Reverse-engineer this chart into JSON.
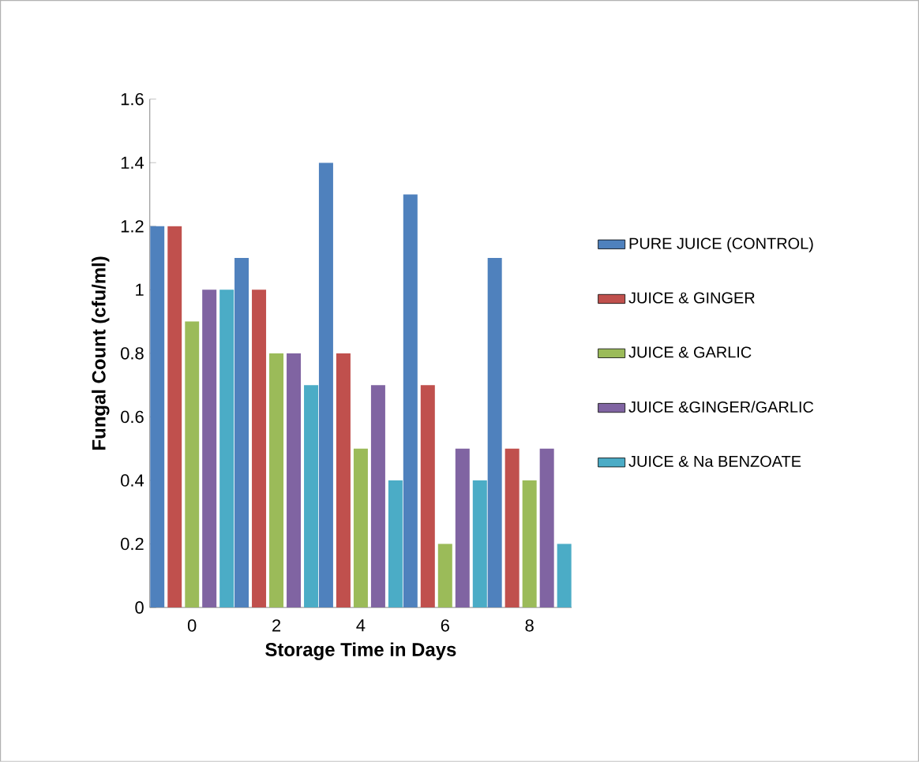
{
  "chart_data": {
    "type": "bar",
    "xlabel": "Storage Time in Days",
    "ylabel": "Fungal Count  (cfu/ml)",
    "categories": [
      "0",
      "2",
      "4",
      "6",
      "8"
    ],
    "series": [
      {
        "name": "PURE JUICE (CONTROL)",
        "color": "#4f81bd",
        "values": [
          1.2,
          1.1,
          1.4,
          1.3,
          1.1
        ]
      },
      {
        "name": "JUICE & GINGER",
        "color": "#c0504d",
        "values": [
          1.2,
          1.0,
          0.8,
          0.7,
          0.5
        ]
      },
      {
        "name": "JUICE & GARLIC",
        "color": "#9bbb59",
        "values": [
          0.9,
          0.8,
          0.5,
          0.2,
          0.4
        ]
      },
      {
        "name": "JUICE &GINGER/GARLIC",
        "color": "#8064a2",
        "values": [
          1.0,
          0.8,
          0.7,
          0.5,
          0.5
        ]
      },
      {
        "name": "JUICE & Na BENZOATE",
        "color": "#4bacc6",
        "values": [
          1.0,
          0.7,
          0.4,
          0.4,
          0.2
        ]
      }
    ],
    "ylim": [
      0,
      1.6
    ],
    "yticks": [
      0,
      0.2,
      0.4,
      0.6,
      0.8,
      1,
      1.2,
      1.4,
      1.6
    ],
    "legend": "right"
  }
}
